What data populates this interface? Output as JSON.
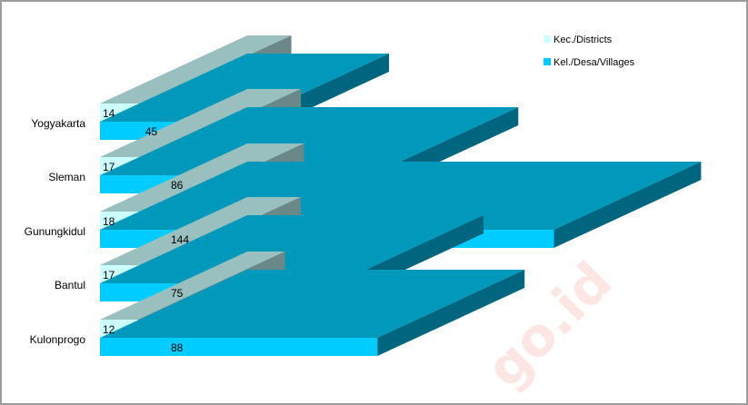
{
  "chart_data": {
    "type": "bar",
    "orientation": "horizontal",
    "style": "3d",
    "title": "",
    "xlabel": "",
    "ylabel": "",
    "categories": [
      "Yogyakarta",
      "Sleman",
      "Gunungkidul",
      "Bantul",
      "Kulonprogo"
    ],
    "series": [
      {
        "name": "Kec./Districts",
        "values": [
          14,
          17,
          18,
          17,
          12
        ],
        "color": "#ccffff"
      },
      {
        "name": "Kel./Desa/Villages",
        "values": [
          45,
          86,
          144,
          75,
          88
        ],
        "color": "#00ccff"
      }
    ],
    "xlim": [
      0,
      150
    ],
    "grid": false,
    "legend_position": "top-right",
    "watermark": "go.id"
  }
}
